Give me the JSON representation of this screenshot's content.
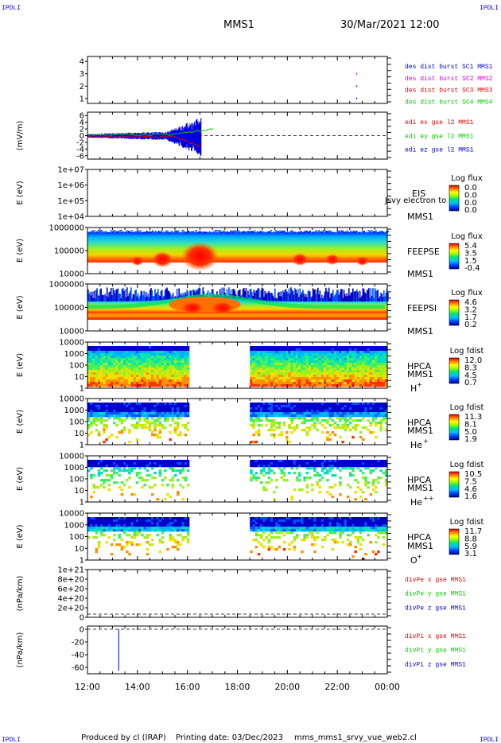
{
  "corner_labels": {
    "top_left": "IPDLI",
    "top_right": "IPDLI",
    "bottom_left": "IPDLI",
    "bottom_right": "IPDLI"
  },
  "header": {
    "spacecraft": "MMS1",
    "date_time": "30/Mar/2021 12:00"
  },
  "footer": {
    "produced_by": "Produced by cl (IRAP)",
    "printing_date": "Printing date: 03/Dec/2023",
    "filename": "mms_mms1_srvy_vue_web2.cl"
  },
  "colors": {
    "red": "#e00000",
    "magenta": "#e000e0",
    "green": "#00cc00",
    "blue": "#0000dd"
  },
  "chart_data": [
    {
      "type": "scatter",
      "panel": "des-dist-burst",
      "ylabel": "",
      "yticks": [
        "4",
        "3",
        "2",
        "1"
      ],
      "yvalues": [
        4,
        3,
        2,
        1
      ],
      "ylim": [
        0.6,
        4.4
      ],
      "legend": [
        {
          "label": "des dist burst SC1 MMS1",
          "color": "#0000dd"
        },
        {
          "label": "des dist burst SC2 MMS2",
          "color": "#e000e0"
        },
        {
          "label": "des dist burst SC3 MMS3",
          "color": "#e00000"
        },
        {
          "label": "des dist burst SC4 MMS4",
          "color": "#00cc00"
        }
      ],
      "points": [
        {
          "x_hours": 22.77,
          "y": 3
        },
        {
          "x_hours": 22.77,
          "y": 2
        },
        {
          "x_hours": 22.77,
          "y": 1
        }
      ]
    },
    {
      "type": "line",
      "panel": "edi",
      "ylabel": "(mV/m)",
      "yticks": [
        "6",
        "4",
        "2",
        "0",
        "-2",
        "-4",
        "-6"
      ],
      "yvalues": [
        6,
        4,
        2,
        0,
        -2,
        -4,
        -6
      ],
      "ylim": [
        -7,
        7
      ],
      "legend": [
        {
          "label": "edi ex gse l2 MMS1",
          "color": "#e00000"
        },
        {
          "label": "edi ey gse l2 MMS1",
          "color": "#00cc00"
        },
        {
          "label": "edi ez gse l2 MMS1",
          "color": "#0000dd"
        }
      ]
    },
    {
      "type": "heatmap",
      "panel": "EIS",
      "ylabel": "E (eV)",
      "yticks": [
        "1e+07",
        "1e+06",
        "1e+05",
        "1e+04"
      ],
      "instrument": [
        "EIS",
        "MMS1"
      ],
      "overlay_text": "Jsvy electron to",
      "colorbar": {
        "title": "Log flux",
        "labels": [
          "0.0",
          "0.0",
          "0.0",
          "0.0"
        ]
      }
    },
    {
      "type": "heatmap",
      "panel": "FEEPSE",
      "ylabel": "E (eV)",
      "yticks": [
        "1000000",
        "100000",
        "10000"
      ],
      "instrument": [
        "FEEPSE",
        "MMS1"
      ],
      "colorbar": {
        "title": "Log flux",
        "labels": [
          "5.4",
          "3.5",
          "1.5",
          "-0.4"
        ]
      }
    },
    {
      "type": "heatmap",
      "panel": "FEEPSI",
      "ylabel": "E (eV)",
      "yticks": [
        "1000000",
        "100000",
        "10000"
      ],
      "instrument": [
        "FEEPSI",
        "MMS1"
      ],
      "colorbar": {
        "title": "Log flux",
        "labels": [
          "4.6",
          "3.2",
          "1.7",
          "0.2"
        ]
      }
    },
    {
      "type": "heatmap",
      "panel": "HPCA-H",
      "ylabel": "E (eV)",
      "yticks": [
        "10000",
        "1000",
        "100",
        "10",
        "1"
      ],
      "instrument": [
        "HPCA",
        "MMS1"
      ],
      "species": "H",
      "charge": "+",
      "colorbar": {
        "title": "Log fdist",
        "labels": [
          "12.0",
          "8.3",
          "4.5",
          "0.7"
        ]
      }
    },
    {
      "type": "heatmap",
      "panel": "HPCA-He+",
      "ylabel": "E (eV)",
      "yticks": [
        "10000",
        "1000",
        "100",
        "10",
        "1"
      ],
      "instrument": [
        "HPCA",
        "MMS1"
      ],
      "species": "He",
      "charge": "+",
      "colorbar": {
        "title": "Log fdist",
        "labels": [
          "11.3",
          "8.1",
          "5.0",
          "1.9"
        ]
      }
    },
    {
      "type": "heatmap",
      "panel": "HPCA-He++",
      "ylabel": "E (eV)",
      "yticks": [
        "10000",
        "1000",
        "100",
        "10",
        "1"
      ],
      "instrument": [
        "HPCA",
        "MMS1"
      ],
      "species": "He",
      "charge": "++",
      "colorbar": {
        "title": "Log fdist",
        "labels": [
          "10.5",
          "7.5",
          "4.6",
          "1.6"
        ]
      }
    },
    {
      "type": "heatmap",
      "panel": "HPCA-O",
      "ylabel": "E (eV)",
      "yticks": [
        "10000",
        "1000",
        "100",
        "10",
        "1"
      ],
      "instrument": [
        "HPCA",
        "MMS1"
      ],
      "species": "O",
      "charge": "+",
      "colorbar": {
        "title": "Log fdist",
        "labels": [
          "11.7",
          "8.8",
          "5.9",
          "3.1"
        ]
      }
    },
    {
      "type": "line",
      "panel": "divPe",
      "ylabel": "(nPa/km)",
      "yticks": [
        "1e+21",
        "8e+20",
        "6e+20",
        "4e+20",
        "2e+20",
        "0"
      ],
      "legend": [
        {
          "label": "divPe x gse MMS1",
          "color": "#e00000"
        },
        {
          "label": "divPe y gse MMS1",
          "color": "#00cc00"
        },
        {
          "label": "divPe z gse MMS1",
          "color": "#0000dd"
        }
      ]
    },
    {
      "type": "line",
      "panel": "divPi",
      "ylabel": "(nPa/km)",
      "yticks": [
        "0",
        "-20",
        "-40",
        "-60"
      ],
      "yvalues": [
        0,
        -20,
        -40,
        -60
      ],
      "ylim": [
        -70,
        5
      ],
      "legend": [
        {
          "label": "divPi x gse MMS1",
          "color": "#e00000"
        },
        {
          "label": "divPi y gse MMS1",
          "color": "#00cc00"
        },
        {
          "label": "divPi z gse MMS1",
          "color": "#0000dd"
        }
      ],
      "spike": {
        "x_hours": 13.25,
        "y_min": -65,
        "y_max": 0
      }
    }
  ],
  "time_axis": {
    "ticks": [
      "12:00",
      "14:00",
      "16:00",
      "18:00",
      "20:00",
      "22:00",
      "00:00"
    ],
    "start_hour": 12,
    "end_hour": 24,
    "hpca_gap_hours": [
      16.0,
      18.5
    ]
  }
}
